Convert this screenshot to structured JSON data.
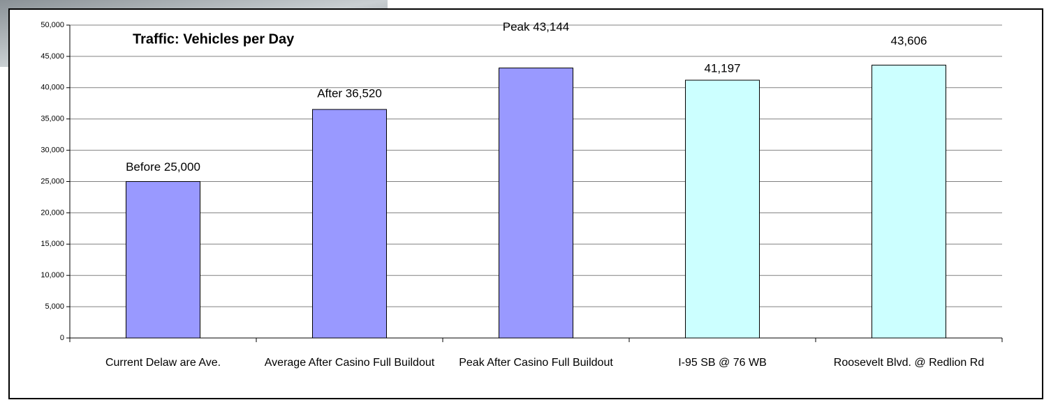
{
  "chart_data": {
    "type": "bar",
    "title": "Traffic: Vehicles per Day",
    "categories": [
      "Current Delaw are Ave.",
      "Average After Casino Full Buildout",
      "Peak After Casino Full Buildout",
      "I-95 SB @ 76 WB",
      "Roosevelt Blvd. @ Redlion Rd"
    ],
    "values": [
      25000,
      36520,
      43144,
      41197,
      43606
    ],
    "value_labels": [
      "Before 25,000",
      "After 36,520",
      "Peak 43,144",
      "41,197",
      "43,606"
    ],
    "colors": [
      "#9999ff",
      "#9999ff",
      "#9999ff",
      "#ccffff",
      "#ccffff"
    ],
    "ylim": [
      0,
      50000
    ],
    "yticks": [
      {
        "value": 0,
        "label": "0"
      },
      {
        "value": 5000,
        "label": "5,000"
      },
      {
        "value": 10000,
        "label": "10,000"
      },
      {
        "value": 15000,
        "label": "15,000"
      },
      {
        "value": 20000,
        "label": "20,000"
      },
      {
        "value": 25000,
        "label": "25,000"
      },
      {
        "value": 30000,
        "label": "30,000"
      },
      {
        "value": 35000,
        "label": "35,000"
      },
      {
        "value": 40000,
        "label": "40,000"
      },
      {
        "value": 45000,
        "label": "45,000"
      },
      {
        "value": 50000,
        "label": "50,000"
      }
    ],
    "grid": true
  }
}
